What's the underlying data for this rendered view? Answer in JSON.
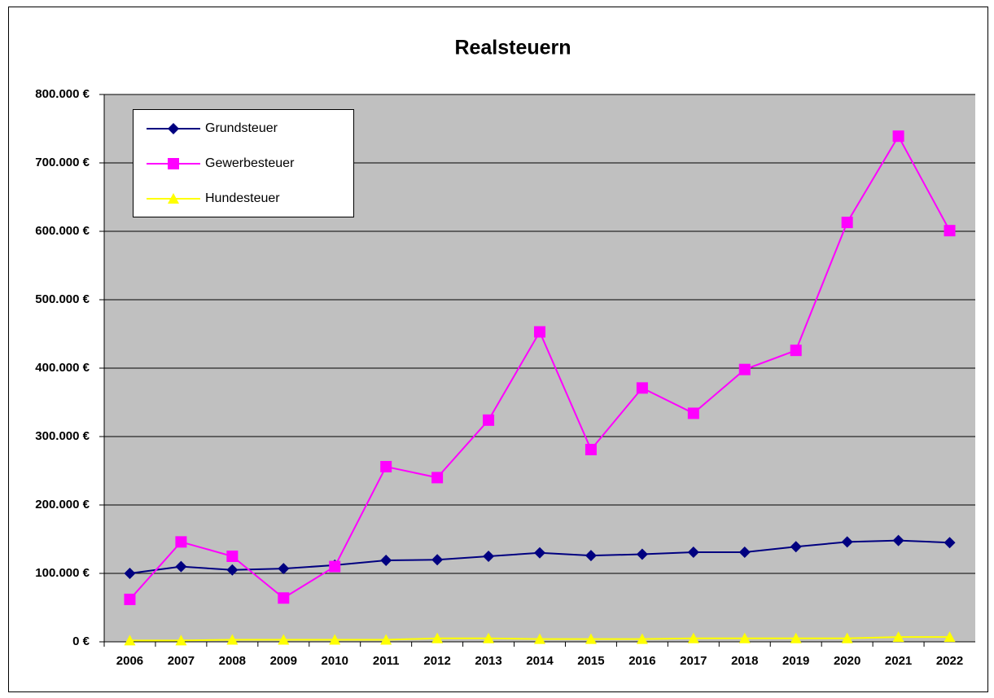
{
  "chart_data": {
    "type": "line",
    "title": "Realsteuern",
    "categories": [
      "2006",
      "2007",
      "2008",
      "2009",
      "2010",
      "2011",
      "2012",
      "2013",
      "2014",
      "2015",
      "2016",
      "2017",
      "2018",
      "2019",
      "2020",
      "2021",
      "2022"
    ],
    "series": [
      {
        "name": "Grundsteuer",
        "color": "#000080",
        "marker": "diamond",
        "values": [
          100000,
          110000,
          105000,
          107000,
          112000,
          119000,
          120000,
          125000,
          130000,
          126000,
          128000,
          131000,
          131000,
          139000,
          146000,
          148000,
          145000
        ]
      },
      {
        "name": "Gewerbesteuer",
        "color": "#ff00ff",
        "marker": "square",
        "values": [
          62000,
          146000,
          125000,
          64000,
          110000,
          256000,
          240000,
          324000,
          453000,
          281000,
          371000,
          334000,
          398000,
          426000,
          613000,
          739000,
          601000
        ]
      },
      {
        "name": "Hundesteuer",
        "color": "#ffff00",
        "marker": "triangle",
        "values": [
          2000,
          2000,
          3000,
          3000,
          3000,
          3000,
          5000,
          5000,
          4000,
          4000,
          4000,
          5000,
          5000,
          5000,
          5000,
          7000,
          7000
        ]
      }
    ],
    "ylim": [
      0,
      800000
    ],
    "yticks": [
      {
        "value": 0,
        "label": "0 €"
      },
      {
        "value": 100000,
        "label": "100.000 €"
      },
      {
        "value": 200000,
        "label": "200.000 €"
      },
      {
        "value": 300000,
        "label": "300.000 €"
      },
      {
        "value": 400000,
        "label": "400.000 €"
      },
      {
        "value": 500000,
        "label": "500.000 €"
      },
      {
        "value": 600000,
        "label": "600.000 €"
      },
      {
        "value": 700000,
        "label": "700.000 €"
      },
      {
        "value": 800000,
        "label": "800.000 €"
      }
    ],
    "grid": true,
    "legend": "upper left",
    "plot_background": "#c0c0c0"
  }
}
